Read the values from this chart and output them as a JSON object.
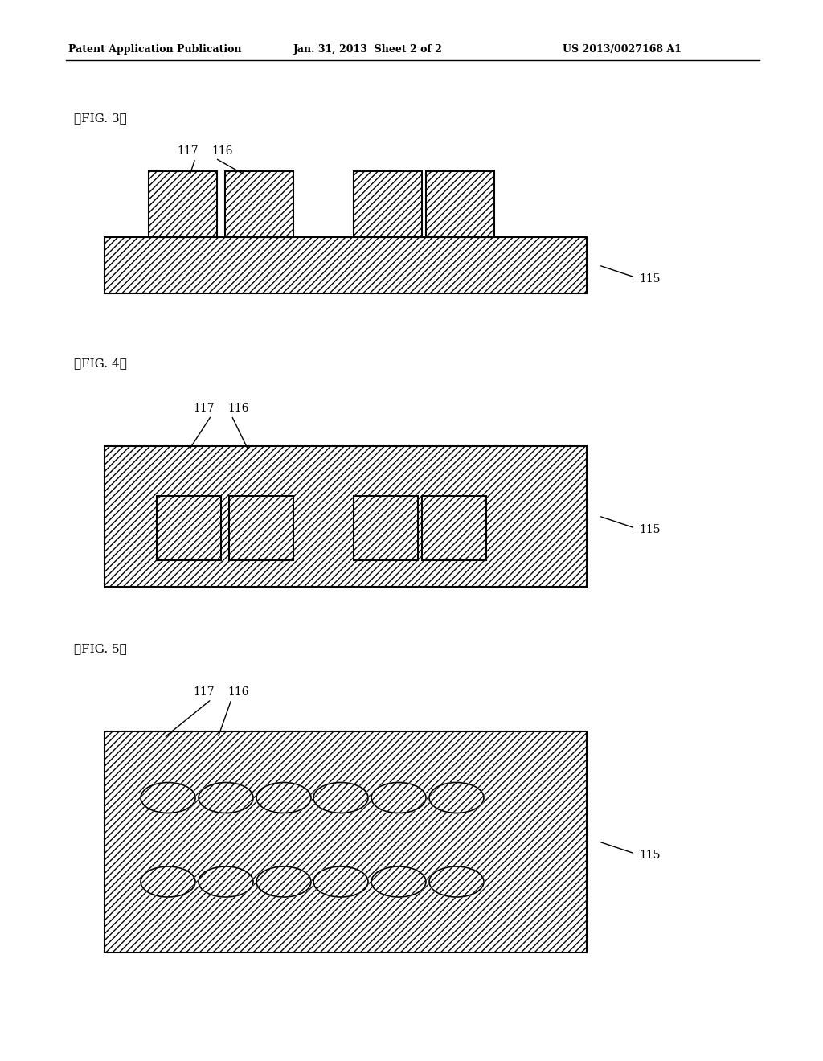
{
  "header_left": "Patent Application Publication",
  "header_mid": "Jan. 31, 2013  Sheet 2 of 2",
  "header_right": "US 2013/0027168 A1",
  "fig3_label": "【FIG. 3】",
  "fig4_label": "【FIG. 4】",
  "fig5_label": "【FIG. 5】",
  "label_115": "115",
  "label_116": "116",
  "label_117": "117",
  "bg_color": "#ffffff"
}
